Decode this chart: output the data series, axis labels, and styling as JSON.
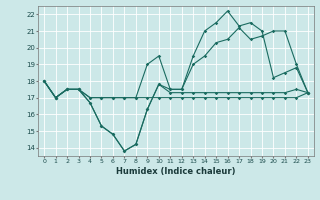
{
  "xlabel": "Humidex (Indice chaleur)",
  "ylabel": "",
  "bg_color": "#cce8e8",
  "line_color": "#1a6b60",
  "grid_color": "#ffffff",
  "xlim": [
    -0.5,
    23.5
  ],
  "ylim": [
    13.5,
    22.5
  ],
  "yticks": [
    14,
    15,
    16,
    17,
    18,
    19,
    20,
    21,
    22
  ],
  "xticks": [
    0,
    1,
    2,
    3,
    4,
    5,
    6,
    7,
    8,
    9,
    10,
    11,
    12,
    13,
    14,
    15,
    16,
    17,
    18,
    19,
    20,
    21,
    22,
    23
  ],
  "series": [
    [
      18.0,
      17.0,
      17.5,
      17.5,
      16.7,
      15.3,
      14.8,
      13.8,
      14.2,
      16.3,
      17.8,
      17.3,
      17.3,
      17.3,
      17.3,
      17.3,
      17.3,
      17.3,
      17.3,
      17.3,
      17.3,
      17.3,
      17.5,
      17.3
    ],
    [
      18.0,
      17.0,
      17.5,
      17.5,
      17.0,
      17.0,
      17.0,
      17.0,
      17.0,
      17.0,
      17.0,
      17.0,
      17.0,
      17.0,
      17.0,
      17.0,
      17.0,
      17.0,
      17.0,
      17.0,
      17.0,
      17.0,
      17.0,
      17.3
    ],
    [
      18.0,
      17.0,
      17.5,
      17.5,
      17.0,
      17.0,
      17.0,
      17.0,
      17.0,
      19.0,
      19.5,
      17.5,
      17.5,
      19.0,
      19.5,
      20.3,
      20.5,
      21.2,
      20.5,
      20.7,
      21.0,
      21.0,
      19.0,
      17.3
    ],
    [
      18.0,
      17.0,
      17.5,
      17.5,
      16.7,
      15.3,
      14.8,
      13.8,
      14.2,
      16.3,
      17.8,
      17.5,
      17.5,
      19.5,
      21.0,
      21.5,
      22.2,
      21.3,
      21.5,
      21.0,
      18.2,
      18.5,
      18.8,
      17.3
    ]
  ]
}
